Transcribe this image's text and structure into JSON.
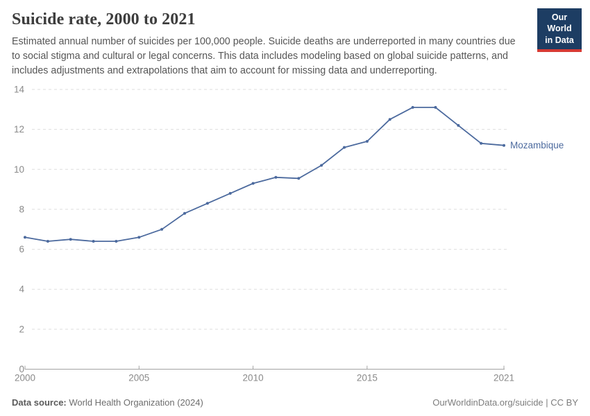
{
  "header": {
    "title": "Suicide rate, 2000 to 2021",
    "subtitle": "Estimated annual number of suicides per 100,000 people. Suicide deaths are underreported in many countries due to social stigma and cultural or legal concerns. This data includes modeling based on global suicide patterns, and includes adjustments and extrapolations that aim to account for missing data and underreporting.",
    "logo": {
      "line1": "Our World",
      "line2": "in Data"
    }
  },
  "chart_data": {
    "type": "line",
    "title": "Suicide rate, 2000 to 2021",
    "xlabel": "",
    "ylabel": "",
    "x": [
      2000,
      2001,
      2002,
      2003,
      2004,
      2005,
      2006,
      2007,
      2008,
      2009,
      2010,
      2011,
      2012,
      2013,
      2014,
      2015,
      2016,
      2017,
      2018,
      2019,
      2020,
      2021
    ],
    "series": [
      {
        "name": "Mozambique",
        "values": [
          6.6,
          6.4,
          6.5,
          6.4,
          6.4,
          6.6,
          7.0,
          7.8,
          8.3,
          8.8,
          9.3,
          9.6,
          9.55,
          10.2,
          11.1,
          11.4,
          12.5,
          13.1,
          13.1,
          12.2,
          11.3,
          11.2
        ],
        "color": "#4c6a9e"
      }
    ],
    "x_ticks": [
      2000,
      2005,
      2010,
      2015,
      2021
    ],
    "y_ticks": [
      0,
      2,
      4,
      6,
      8,
      10,
      12,
      14
    ],
    "xlim": [
      2000,
      2021
    ],
    "ylim": [
      0,
      14
    ],
    "grid": "horizontal-dashed",
    "legend_position": "end-of-line-label",
    "end_label": "Mozambique"
  },
  "footer": {
    "source_label": "Data source:",
    "source_text": " World Health Organization (2024)",
    "credit": "OurWorldinData.org/suicide | CC BY"
  },
  "colors": {
    "series": "#4c6a9e",
    "gridline": "#dddddd",
    "axis_line": "#a3a3a3",
    "tick_label": "#8a8a8a",
    "logo_bg": "#1d3d63",
    "logo_accent": "#d73a34"
  }
}
